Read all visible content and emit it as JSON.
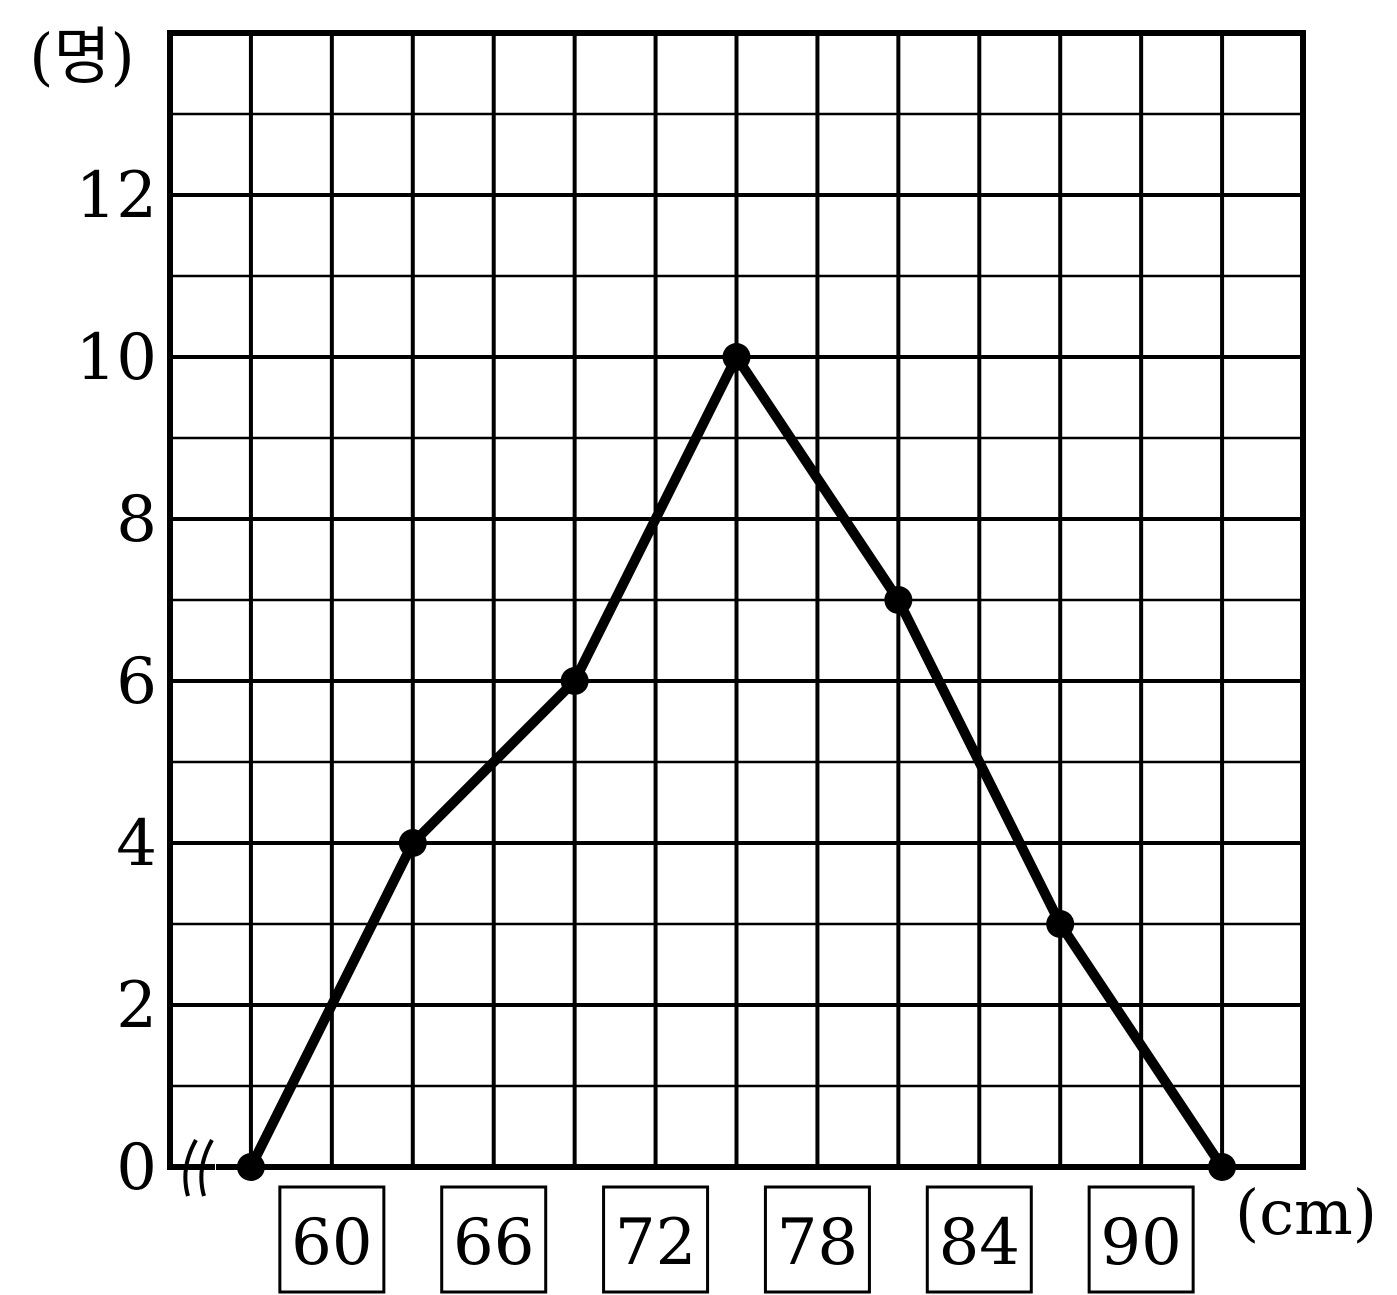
{
  "chart_data": {
    "type": "line",
    "y_unit_label": "(명)",
    "x_unit_label": "(cm)",
    "x_tick_labels": [
      "60",
      "66",
      "72",
      "78",
      "84",
      "90"
    ],
    "y_tick_labels": [
      "0",
      "2",
      "4",
      "6",
      "8",
      "10",
      "12"
    ],
    "ylim": [
      0,
      14
    ],
    "y_minor_step": 1,
    "y_major_step": 2,
    "xlim": [
      54,
      96
    ],
    "x_axis_break": true,
    "grid": true,
    "series": [
      {
        "x": [
          57,
          63,
          69,
          75,
          81,
          87,
          93
        ],
        "y": [
          0,
          4,
          6,
          10,
          7,
          3,
          0
        ]
      }
    ],
    "colors": {
      "line": "#000000",
      "grid": "#000000",
      "background": "#ffffff"
    }
  }
}
